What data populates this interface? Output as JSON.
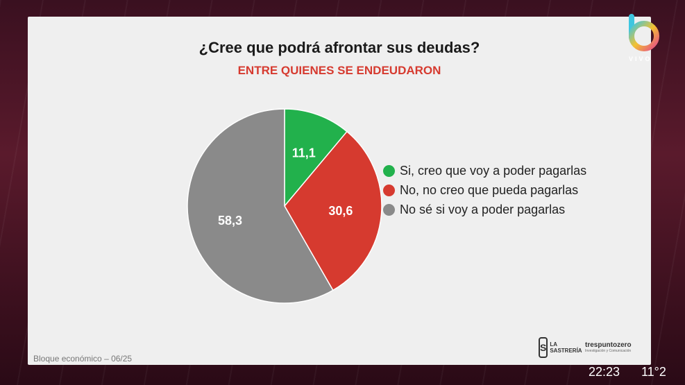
{
  "chart_data": {
    "type": "pie",
    "title": "¿Cree que podrá afrontar sus deudas?",
    "subtitle": "ENTRE QUIENES SE ENDEUDARON",
    "slices": [
      {
        "label": "Si, creo que voy a poder pagarlas",
        "value": 11.1,
        "display": "11,1",
        "color": "#22b14c"
      },
      {
        "label": "No, no creo que pueda pagarlas",
        "value": 30.6,
        "display": "30,6",
        "color": "#d63a2f"
      },
      {
        "label": "No sé si voy a poder pagarlas",
        "value": 58.3,
        "display": "58,3",
        "color": "#8a8a8a"
      }
    ],
    "legend_position": "right"
  },
  "footer": {
    "source": "Bloque económico – 06/25",
    "logo1_mark": "S",
    "logo1_text": "LA SASTRERÍA",
    "logo2_text": "trespuntozero",
    "logo2_sub": "Investigación y Comunicación"
  },
  "broadcast": {
    "channel_badge": "VIVO",
    "time": "22:23",
    "temperature": "11°2"
  }
}
